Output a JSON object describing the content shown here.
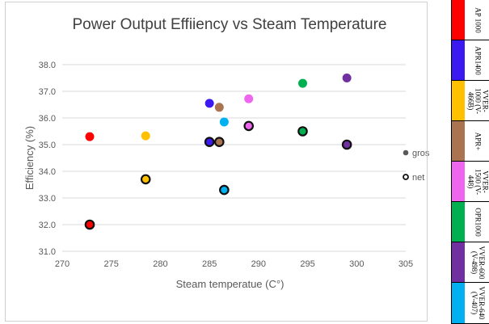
{
  "chart_data": {
    "type": "scatter",
    "title": "Power Output Effiiency vs Steam Temperature",
    "xlabel": "Steam temperatue (C°)",
    "ylabel": "Efficiency (%)",
    "xlim": [
      270,
      305
    ],
    "ylim": [
      31.0,
      38.0
    ],
    "x_ticks": [
      "270",
      "275",
      "280",
      "285",
      "290",
      "295",
      "300",
      "305"
    ],
    "y_ticks": [
      "31.0",
      "32.0",
      "33.0",
      "34.0",
      "35.0",
      "36.0",
      "37.0",
      "38.0"
    ],
    "grid": true,
    "legend_position": "right",
    "legend": [
      {
        "name": "gross",
        "marker": "filled"
      },
      {
        "name": "net",
        "marker": "outlined"
      }
    ],
    "series": [
      {
        "name": "gross",
        "points": [
          {
            "plant": "AP 1000",
            "x": 272.8,
            "y": 35.3
          },
          {
            "plant": "VVER-1000 (V-466B)",
            "x": 278.5,
            "y": 35.33
          },
          {
            "plant": "APR1400",
            "x": 285.0,
            "y": 36.55
          },
          {
            "plant": "APR+",
            "x": 286.0,
            "y": 36.4
          },
          {
            "plant": "VVER-640 (V-407)",
            "x": 286.5,
            "y": 35.85
          },
          {
            "plant": "VVER-1500 (V-448)",
            "x": 289.0,
            "y": 36.72
          },
          {
            "plant": "OPR1000",
            "x": 294.5,
            "y": 37.3
          },
          {
            "plant": "VVER-600 (V-498)",
            "x": 299.0,
            "y": 37.5
          }
        ]
      },
      {
        "name": "net",
        "points": [
          {
            "plant": "AP 1000",
            "x": 272.8,
            "y": 32.0
          },
          {
            "plant": "VVER-1000 (V-466B)",
            "x": 278.5,
            "y": 33.7
          },
          {
            "plant": "APR1400",
            "x": 285.0,
            "y": 35.1
          },
          {
            "plant": "APR+",
            "x": 286.0,
            "y": 35.1
          },
          {
            "plant": "VVER-640 (V-407)",
            "x": 286.5,
            "y": 33.3
          },
          {
            "plant": "VVER-1500 (V-448)",
            "x": 289.0,
            "y": 35.7
          },
          {
            "plant": "OPR1000",
            "x": 294.5,
            "y": 35.5
          },
          {
            "plant": "VVER-600 (V-498)",
            "x": 299.0,
            "y": 35.0
          }
        ]
      }
    ]
  },
  "color_key": [
    {
      "label": "AP 1000",
      "color": "#ff0000"
    },
    {
      "label": "APR1400",
      "color": "#3a1af0"
    },
    {
      "label": "VVER-1000 (V-466B)",
      "color": "#ffc000"
    },
    {
      "label": "APR+",
      "color": "#a9744f"
    },
    {
      "label": "VVER-1500 (V-448)",
      "color": "#ee66ee"
    },
    {
      "label": "OPR1000",
      "color": "#00b050"
    },
    {
      "label": "VVER-600 (V-498)",
      "color": "#7030a0"
    },
    {
      "label": "VVER-640 (V-407)",
      "color": "#00b0f0"
    }
  ],
  "colors": {
    "axis_text": "#595959",
    "title_text": "#404040",
    "gridline": "#d9d9d9",
    "marker_outline": "#111111",
    "legend_gross": "#595959"
  }
}
